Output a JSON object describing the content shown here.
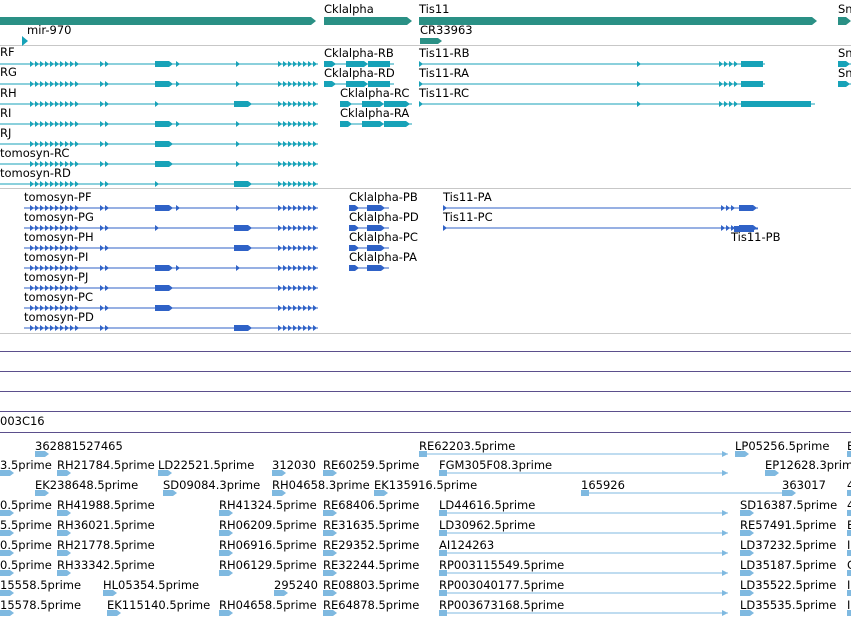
{
  "colors": {
    "gene": "#2a9085",
    "transcript_a": "#17a2b8",
    "transcript_b": "#2f62c7",
    "est": "#7fb9e0",
    "separator": "#c7c7c7",
    "track_line": "#5b4f8c"
  },
  "genes": [
    {
      "id": "gene-1",
      "label": ""
    },
    {
      "id": "mir-970",
      "label": "mir-970"
    },
    {
      "id": "cklalpha",
      "label": "Cklalpha"
    },
    {
      "id": "tis11",
      "label": "Tis11"
    },
    {
      "id": "cr33963",
      "label": "CR33963"
    },
    {
      "id": "sn-gene",
      "label": "Sn"
    }
  ],
  "transcripts_a": [
    {
      "label": "RF"
    },
    {
      "label": "RG"
    },
    {
      "label": "RH"
    },
    {
      "label": "RI"
    },
    {
      "label": "RJ"
    },
    {
      "label": "tomosyn-RC"
    },
    {
      "label": "tomosyn-RD"
    },
    {
      "label": "Cklalpha-RB"
    },
    {
      "label": "Cklalpha-RD"
    },
    {
      "label": "Cklalpha-RC"
    },
    {
      "label": "Cklalpha-RA"
    },
    {
      "label": "Tis11-RB"
    },
    {
      "label": "Tis11-RA"
    },
    {
      "label": "Tis11-RC"
    },
    {
      "label": "Sn"
    },
    {
      "label": "Sn"
    }
  ],
  "transcripts_b": [
    {
      "label": "tomosyn-PF"
    },
    {
      "label": "tomosyn-PG"
    },
    {
      "label": "tomosyn-PH"
    },
    {
      "label": "tomosyn-PI"
    },
    {
      "label": "tomosyn-PJ"
    },
    {
      "label": "tomosyn-PC"
    },
    {
      "label": "tomosyn-PD"
    },
    {
      "label": "Cklalpha-PB"
    },
    {
      "label": "Cklalpha-PD"
    },
    {
      "label": "Cklalpha-PC"
    },
    {
      "label": "Cklalpha-PA"
    },
    {
      "label": "Tis11-PA"
    },
    {
      "label": "Tis11-PC"
    },
    {
      "label": "Tis11-PB"
    }
  ],
  "clone_label": "003C16",
  "ests": [
    "362881527465",
    "RE62203.5prime",
    "LP05256.5prime",
    "E",
    "3.5prime",
    "RH21784.5prime",
    "LD22521.5prime",
    "312030",
    "RE60259.5prime",
    "FGM305F08.3prime",
    "EP12628.3prim",
    "EK238648.5prime",
    "SD09084.3prime",
    "RH04658.3prime",
    "EK135916.5prime",
    "165926",
    "363017",
    "4",
    "0.5prime",
    "RH41988.5prime",
    "RH41324.5prime",
    "RE68406.5prime",
    "LD44616.5prime",
    "SD16387.5prime",
    "4",
    "5.5prime",
    "RH36021.5prime",
    "RH06209.5prime",
    "RE31635.5prime",
    "LD30962.5prime",
    "RE57491.5prime",
    "E",
    "0.5prime",
    "RH21778.5prime",
    "RH06916.5prime",
    "RE29352.5prime",
    "AI124263",
    "LD37232.5prime",
    "I",
    "0.5prime",
    "RH33342.5prime",
    "RH06129.5prime",
    "RE32244.5prime",
    "RP003115549.5prime",
    "LD35187.5prime",
    "C",
    "15558.5prime",
    "HL05354.5prime",
    "295240",
    "RE08803.5prime",
    "RP003040177.5prime",
    "LD35522.5prime",
    "I",
    "15578.5prime",
    "EK115140.5prime",
    "RH04658.5prime",
    "RE64878.5prime",
    "RP003673168.5prime",
    "LD35535.5prime",
    "I"
  ]
}
